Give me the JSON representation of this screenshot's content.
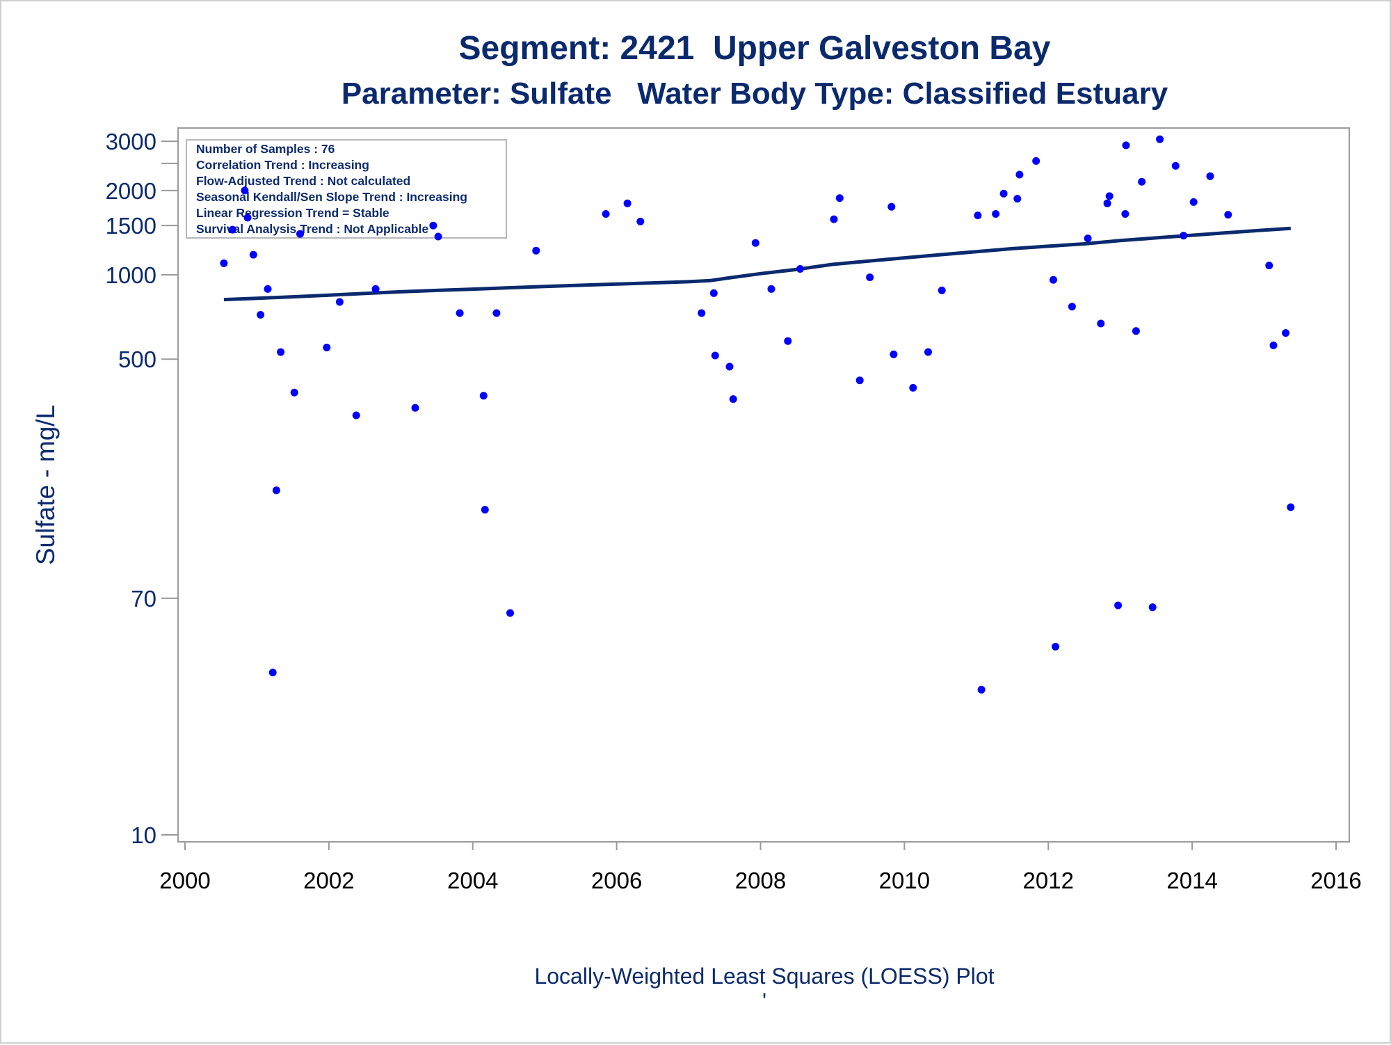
{
  "chart_data": {
    "type": "scatter",
    "title": "Segment: 2421  Upper Galveston Bay",
    "subtitle": "Parameter: Sulfate   Water Body Type: Classified Estuary",
    "xlabel": "",
    "ylabel": "Sulfate - mg/L",
    "footnote": "Locally-Weighted Least Squares (LOESS) Plot",
    "footnote_mark": "'",
    "y_scale": "log",
    "xlim": [
      2000,
      2016
    ],
    "ylim": [
      10,
      3500
    ],
    "x_ticks": [
      2000,
      2002,
      2004,
      2006,
      2008,
      2010,
      2012,
      2014,
      2016
    ],
    "x_tick_labels": [
      "2000",
      "2002",
      "2004",
      "2006",
      "2008",
      "2010",
      "2012",
      "2014",
      "2016"
    ],
    "y_ticks": [
      10,
      70,
      500,
      1000,
      1500,
      2000,
      3000
    ],
    "y_tick_labels": [
      "10",
      "70",
      "500",
      "1000",
      "1500",
      "2000",
      "3000"
    ],
    "y_minor_ticks": [
      2500
    ],
    "stats_box": [
      "Number of Samples : 76",
      "Correlation Trend : Increasing",
      "Flow-Adjusted Trend : Not calculated",
      "Seasonal Kendall/Sen Slope Trend : Increasing",
      "Linear Regression Trend = Stable",
      "Survival Analysis Trend : Not Applicable"
    ],
    "point_color": "#0000ff",
    "line_color": "#0b2a6e",
    "series": [
      {
        "type": "scatter",
        "points": [
          [
            2000.54,
            1100
          ],
          [
            2000.66,
            1450
          ],
          [
            2000.83,
            2000
          ],
          [
            2000.87,
            1600
          ],
          [
            2000.95,
            1180
          ],
          [
            2001.05,
            720
          ],
          [
            2001.15,
            890
          ],
          [
            2001.22,
            38
          ],
          [
            2001.27,
            170
          ],
          [
            2001.33,
            530
          ],
          [
            2001.52,
            380
          ],
          [
            2001.6,
            1400
          ],
          [
            2001.97,
            550
          ],
          [
            2002.15,
            800
          ],
          [
            2002.38,
            315
          ],
          [
            2002.65,
            890
          ],
          [
            2003.2,
            335
          ],
          [
            2003.45,
            1500
          ],
          [
            2003.52,
            1370
          ],
          [
            2003.82,
            730
          ],
          [
            2004.15,
            370
          ],
          [
            2004.17,
            145
          ],
          [
            2004.33,
            730
          ],
          [
            2004.52,
            62
          ],
          [
            2004.88,
            1220
          ],
          [
            2005.85,
            1650
          ],
          [
            2006.15,
            1800
          ],
          [
            2006.33,
            1550
          ],
          [
            2007.18,
            730
          ],
          [
            2007.35,
            860
          ],
          [
            2007.37,
            515
          ],
          [
            2007.57,
            470
          ],
          [
            2007.62,
            360
          ],
          [
            2007.93,
            1300
          ],
          [
            2008.15,
            890
          ],
          [
            2008.38,
            580
          ],
          [
            2008.55,
            1050
          ],
          [
            2009.02,
            1580
          ],
          [
            2009.1,
            1880
          ],
          [
            2009.38,
            420
          ],
          [
            2009.52,
            980
          ],
          [
            2009.82,
            1750
          ],
          [
            2009.85,
            520
          ],
          [
            2010.12,
            395
          ],
          [
            2010.33,
            530
          ],
          [
            2010.52,
            880
          ],
          [
            2011.02,
            1630
          ],
          [
            2011.07,
            33
          ],
          [
            2011.27,
            1650
          ],
          [
            2011.38,
            1950
          ],
          [
            2011.57,
            1870
          ],
          [
            2011.6,
            2280
          ],
          [
            2011.83,
            2550
          ],
          [
            2012.07,
            960
          ],
          [
            2012.1,
            47
          ],
          [
            2012.33,
            770
          ],
          [
            2012.55,
            1350
          ],
          [
            2012.73,
            670
          ],
          [
            2012.82,
            1800
          ],
          [
            2012.85,
            1910
          ],
          [
            2012.97,
            66
          ],
          [
            2013.07,
            1650
          ],
          [
            2013.08,
            2900
          ],
          [
            2013.22,
            630
          ],
          [
            2013.3,
            2150
          ],
          [
            2013.45,
            65
          ],
          [
            2013.55,
            3050
          ],
          [
            2013.77,
            2450
          ],
          [
            2013.88,
            1380
          ],
          [
            2014.02,
            1820
          ],
          [
            2014.25,
            2250
          ],
          [
            2014.5,
            1640
          ],
          [
            2015.07,
            1080
          ],
          [
            2015.13,
            560
          ],
          [
            2015.3,
            620
          ],
          [
            2015.37,
            148
          ]
        ]
      },
      {
        "type": "line",
        "name": "LOESS",
        "points": [
          [
            2000.54,
            816
          ],
          [
            2001.0,
            825
          ],
          [
            2001.5,
            835
          ],
          [
            2002.0,
            846
          ],
          [
            2002.5,
            858
          ],
          [
            2003.0,
            870
          ],
          [
            2003.5,
            880
          ],
          [
            2004.0,
            889
          ],
          [
            2004.5,
            899
          ],
          [
            2005.0,
            909
          ],
          [
            2005.5,
            918
          ],
          [
            2006.0,
            927
          ],
          [
            2006.5,
            936
          ],
          [
            2007.0,
            945
          ],
          [
            2007.3,
            954
          ],
          [
            2007.6,
            978
          ],
          [
            2008.0,
            1010
          ],
          [
            2008.5,
            1045
          ],
          [
            2009.0,
            1090
          ],
          [
            2009.5,
            1120
          ],
          [
            2010.0,
            1150
          ],
          [
            2010.5,
            1180
          ],
          [
            2011.0,
            1210
          ],
          [
            2011.5,
            1240
          ],
          [
            2012.0,
            1265
          ],
          [
            2012.5,
            1290
          ],
          [
            2013.0,
            1325
          ],
          [
            2013.5,
            1355
          ],
          [
            2014.0,
            1385
          ],
          [
            2014.5,
            1415
          ],
          [
            2015.0,
            1445
          ],
          [
            2015.37,
            1465
          ]
        ]
      }
    ]
  }
}
